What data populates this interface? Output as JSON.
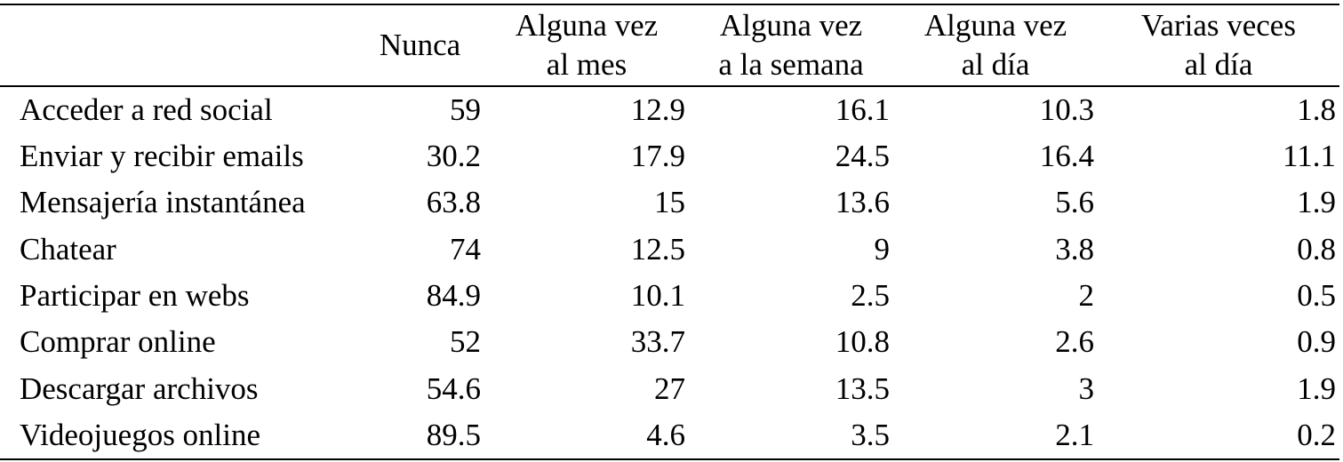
{
  "table": {
    "header": [
      [
        "Nunca"
      ],
      [
        "Alguna vez",
        "al mes"
      ],
      [
        "Alguna vez",
        "a la semana"
      ],
      [
        "Alguna vez",
        "al día"
      ],
      [
        "Varias veces",
        "al día"
      ]
    ],
    "rows": [
      [
        "Acceder a red social",
        59,
        12.9,
        16.1,
        10.3,
        1.8
      ],
      [
        "Enviar y recibir emails",
        30.2,
        17.9,
        24.5,
        16.4,
        11.1
      ],
      [
        "Mensajería instantánea",
        63.8,
        15,
        13.6,
        5.6,
        1.9
      ],
      [
        "Chatear",
        74,
        12.5,
        9,
        3.8,
        0.8
      ],
      [
        "Participar en webs",
        84.9,
        10.1,
        2.5,
        2,
        0.5
      ],
      [
        "Comprar online",
        52,
        33.7,
        10.8,
        2.6,
        0.9
      ],
      [
        "Descargar archivos",
        54.6,
        27,
        13.5,
        3,
        1.9
      ],
      [
        "Videojuegos online",
        89.5,
        4.6,
        3.5,
        2.1,
        0.2
      ]
    ]
  }
}
